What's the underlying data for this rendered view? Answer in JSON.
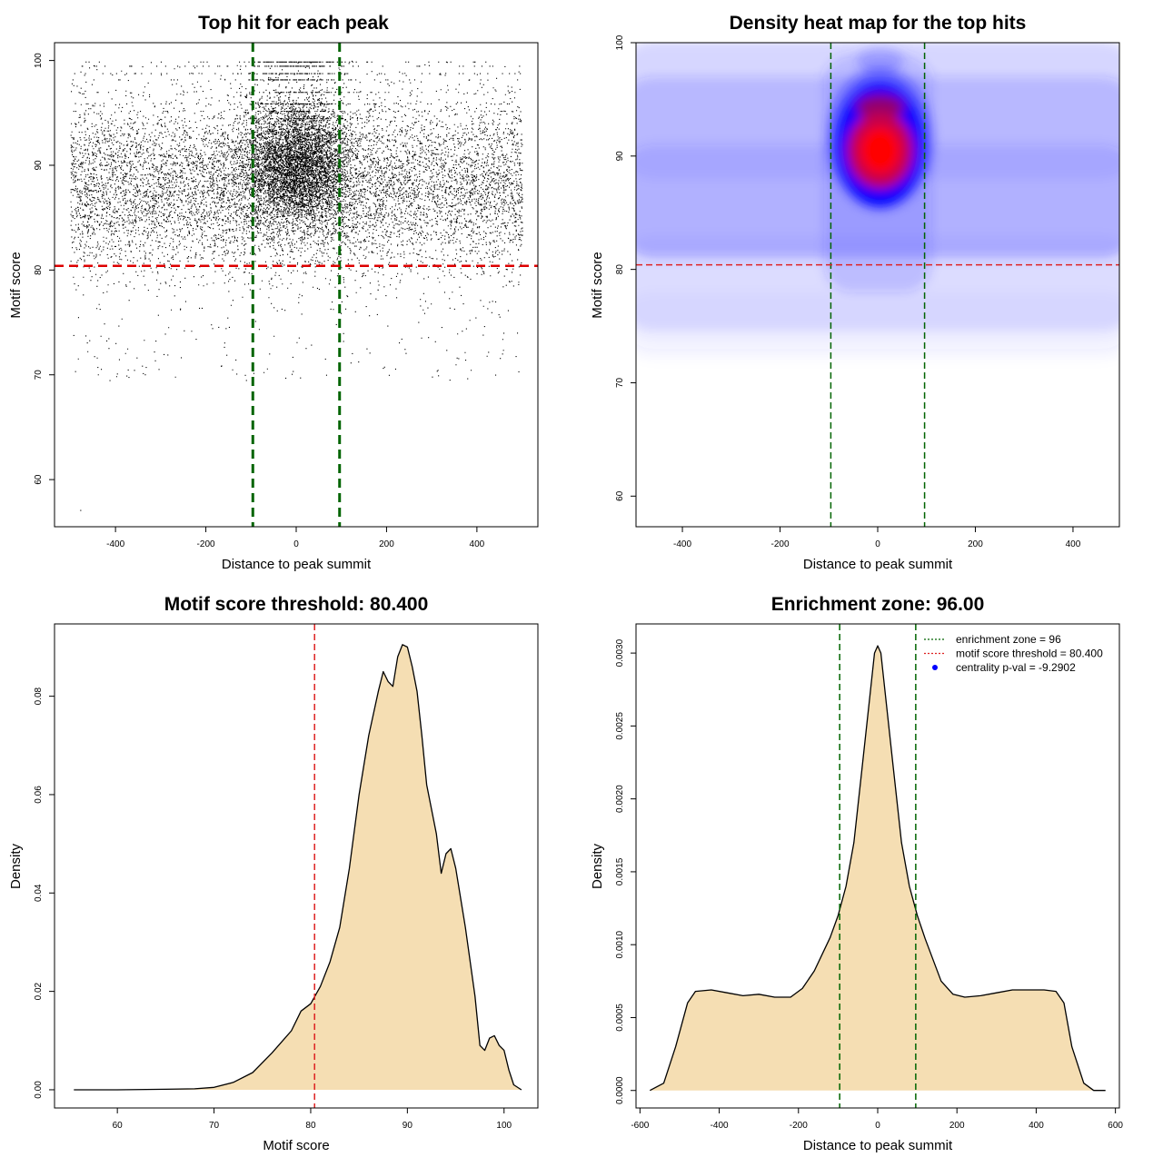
{
  "chart_data": [
    {
      "id": "scatter",
      "type": "scatter",
      "title": "Top hit for each peak",
      "xlabel": "Distance to peak summit",
      "ylabel": "Motif score",
      "xlim": [
        -535,
        535
      ],
      "ylim": [
        55.5,
        101.7
      ],
      "xticks": [
        -400,
        -200,
        0,
        200,
        400
      ],
      "yticks": [
        60,
        70,
        80,
        90,
        100
      ],
      "vlines": [
        -96,
        96
      ],
      "hline": 80.4,
      "x_range": [
        -500,
        500
      ],
      "score_center": 88,
      "central_score_center": 90,
      "discrete_scores": [
        99.9,
        99.5,
        98.8,
        98.2,
        97.0,
        95.9,
        95.2,
        94.5
      ],
      "colors": {
        "points": "#000000",
        "vlines": "#006400",
        "hline": "#dd0000"
      }
    },
    {
      "id": "heatmap",
      "type": "heatmap",
      "title": "Density heat map for the top hits",
      "xlabel": "Distance to peak summit",
      "ylabel": "Motif score",
      "xlim": [
        -495,
        495
      ],
      "ylim": [
        57.3,
        100
      ],
      "xticks": [
        -400,
        -200,
        0,
        200,
        400
      ],
      "yticks": [
        60,
        70,
        80,
        90,
        100
      ],
      "vlines": [
        -96,
        96
      ],
      "hline": 80.4,
      "density_peak": {
        "x": 5,
        "y": 90.5
      },
      "colors": {
        "low": "#ffffff",
        "mid": "#0000ff",
        "high": "#ff0000",
        "vlines": "#006400",
        "hline": "#dd2222"
      }
    },
    {
      "id": "score-density",
      "type": "area",
      "title": "Motif score threshold: 80.400",
      "xlabel": "Motif score",
      "ylabel": "Density",
      "xlim": [
        53.5,
        103.5
      ],
      "ylim": [
        -0.0037,
        0.0947
      ],
      "xticks": [
        60,
        70,
        80,
        90,
        100
      ],
      "yticks": [
        0.0,
        0.02,
        0.04,
        0.06,
        0.08
      ],
      "ytick_labels": [
        "0.00",
        "0.02",
        "0.04",
        "0.06",
        "0.08"
      ],
      "vline": 80.4,
      "x": [
        55.5,
        60,
        65,
        68,
        70,
        72,
        74,
        76,
        78,
        79,
        80,
        81,
        82,
        83,
        84,
        85,
        86,
        87,
        87.5,
        88,
        88.5,
        89,
        89.5,
        90,
        90.5,
        91,
        91.5,
        92,
        93,
        93.5,
        94,
        94.5,
        95,
        96,
        97,
        97.5,
        98,
        98.5,
        99,
        99.5,
        100,
        100.5,
        101,
        101.8
      ],
      "y": [
        0.0,
        0.0,
        0.0001,
        0.0002,
        0.0005,
        0.0015,
        0.0035,
        0.0075,
        0.012,
        0.016,
        0.0175,
        0.021,
        0.026,
        0.033,
        0.045,
        0.06,
        0.072,
        0.081,
        0.085,
        0.083,
        0.082,
        0.088,
        0.0905,
        0.09,
        0.086,
        0.081,
        0.072,
        0.062,
        0.052,
        0.044,
        0.048,
        0.049,
        0.045,
        0.033,
        0.019,
        0.009,
        0.008,
        0.0105,
        0.011,
        0.009,
        0.008,
        0.004,
        0.001,
        0.0
      ]
    },
    {
      "id": "centrality-density",
      "type": "area",
      "title": "Enrichment zone: 96.00",
      "xlabel": "Distance to peak summit",
      "ylabel": "Density",
      "xlim": [
        -610,
        610
      ],
      "ylim": [
        -0.00012,
        0.0032
      ],
      "xticks": [
        -600,
        -400,
        -200,
        0,
        200,
        400,
        600
      ],
      "yticks": [
        0.0,
        0.0005,
        0.001,
        0.0015,
        0.002,
        0.0025,
        0.003
      ],
      "ytick_labels": [
        "0.0000",
        "0.0005",
        "0.0010",
        "0.0015",
        "0.0020",
        "0.0025",
        "0.0030"
      ],
      "vlines": [
        -96,
        96
      ],
      "x": [
        -575,
        -540,
        -510,
        -480,
        -460,
        -420,
        -380,
        -340,
        -300,
        -260,
        -220,
        -190,
        -160,
        -120,
        -100,
        -80,
        -60,
        -40,
        -20,
        -8,
        0,
        8,
        20,
        40,
        60,
        80,
        100,
        120,
        160,
        190,
        220,
        260,
        300,
        340,
        380,
        420,
        450,
        470,
        490,
        520,
        545,
        575
      ],
      "y": [
        0.0,
        5e-05,
        0.0003,
        0.0006,
        0.00068,
        0.00069,
        0.00067,
        0.00065,
        0.00066,
        0.00064,
        0.00064,
        0.0007,
        0.00082,
        0.00105,
        0.0012,
        0.0014,
        0.0017,
        0.0022,
        0.0027,
        0.003,
        0.00305,
        0.003,
        0.0027,
        0.0022,
        0.0017,
        0.0014,
        0.0012,
        0.00104,
        0.00075,
        0.00066,
        0.00064,
        0.00065,
        0.00067,
        0.00069,
        0.00069,
        0.00069,
        0.00068,
        0.0006,
        0.0003,
        5e-05,
        0.0,
        0.0
      ],
      "legend": {
        "position": "top-right",
        "entries": [
          {
            "label": "enrichment zone = 96",
            "color": "#006400",
            "kind": "dotted-line"
          },
          {
            "label": "motif score threshold = 80.400",
            "color": "#dd2222",
            "kind": "dotted-line"
          },
          {
            "label": "centrality p-val = -9.2902",
            "color": "#0000ff",
            "kind": "point"
          }
        ]
      }
    }
  ]
}
